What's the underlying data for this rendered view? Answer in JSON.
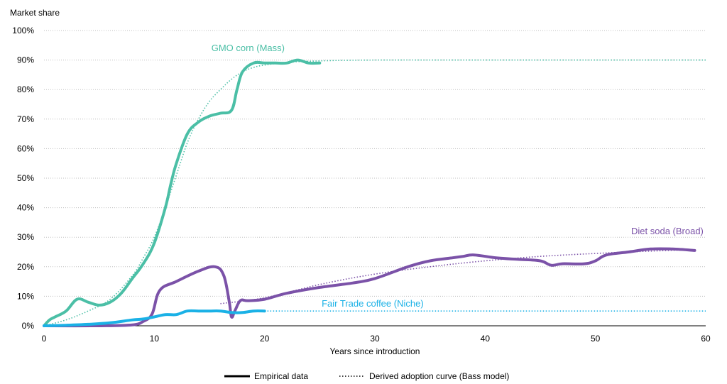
{
  "chart_data": {
    "type": "line",
    "ylabel": "Market share",
    "xlabel": "Years since introduction",
    "xlim": [
      0,
      60
    ],
    "ylim": [
      0,
      100
    ],
    "x_ticks": [
      0,
      10,
      20,
      30,
      40,
      50,
      60
    ],
    "y_ticks": [
      0,
      10,
      20,
      30,
      40,
      50,
      60,
      70,
      80,
      90,
      100
    ],
    "y_tick_suffix": "%",
    "grid": true,
    "legend": {
      "placement": "bottom",
      "entries": [
        {
          "label": "Empirical data",
          "style": "solid"
        },
        {
          "label": "Derived adoption curve (Bass model)",
          "style": "dotted"
        }
      ]
    },
    "series": [
      {
        "name": "GMO corn (Mass)",
        "color": "#4bbfa6",
        "empirical": {
          "x": [
            0,
            0.5,
            1,
            2,
            3,
            4,
            5,
            6,
            7,
            8,
            9,
            10,
            11,
            11.5,
            12,
            13,
            14,
            15,
            16,
            17,
            17.5,
            18,
            19,
            20,
            21,
            22,
            23,
            24,
            25
          ],
          "y": [
            0,
            2,
            3,
            5,
            9,
            8,
            7,
            8,
            11,
            16,
            21,
            28,
            40,
            48,
            55,
            65,
            69,
            71,
            72,
            73,
            80,
            86,
            89,
            89,
            89,
            89,
            90,
            89,
            89
          ]
        },
        "bass": {
          "x": [
            0,
            2,
            4,
            6,
            8,
            9,
            10,
            11,
            12,
            13,
            14,
            15,
            16,
            17,
            18,
            19,
            20,
            22,
            25,
            30,
            40,
            50,
            60
          ],
          "y": [
            0,
            2,
            5,
            9,
            17,
            23,
            30,
            40,
            51,
            62,
            70,
            76,
            80,
            83.5,
            86,
            87.5,
            88.3,
            89.2,
            89.7,
            90,
            90,
            90,
            90
          ]
        }
      },
      {
        "name": "Diet soda (Broad)",
        "color": "#7b52a8",
        "empirical": {
          "x": [
            0,
            5,
            8,
            9,
            9.8,
            10.5,
            12,
            14,
            15.5,
            16.3,
            16.8,
            17,
            17.3,
            17.8,
            18.5,
            20,
            22,
            25,
            28,
            30,
            33,
            35,
            37,
            38,
            39,
            41,
            43,
            45,
            46,
            47,
            49,
            50,
            51,
            53,
            55,
            57,
            59
          ],
          "y": [
            0,
            0,
            0.3,
            1.5,
            4,
            12,
            15,
            18.5,
            20,
            17,
            8,
            3,
            5,
            8.5,
            8.5,
            9,
            11,
            13,
            14.5,
            16,
            20,
            22,
            23,
            23.5,
            24,
            23,
            22.5,
            22,
            20.5,
            21,
            21,
            22,
            24,
            25,
            26,
            26,
            25.5
          ]
        },
        "bass": {
          "x": [
            16,
            20,
            25,
            30,
            35,
            40,
            45,
            50,
            55,
            59
          ],
          "y": [
            7.5,
            9.5,
            14,
            17.5,
            20,
            22,
            23.5,
            24.5,
            25.3,
            25.8
          ]
        }
      },
      {
        "name": "Fair Trade coffee (Niche)",
        "color": "#1ab1e6",
        "empirical": {
          "x": [
            0,
            2,
            4,
            6,
            8,
            9,
            10,
            11,
            12,
            13,
            14,
            15,
            16,
            17,
            18,
            19,
            20
          ],
          "y": [
            0,
            0.2,
            0.5,
            1,
            2,
            2.3,
            3,
            3.8,
            3.8,
            5,
            5,
            5,
            5,
            4.5,
            4.5,
            5,
            5
          ]
        },
        "bass": {
          "x": [
            20,
            30,
            40,
            50,
            60
          ],
          "y": [
            5,
            5,
            5,
            5,
            5
          ]
        }
      }
    ]
  }
}
